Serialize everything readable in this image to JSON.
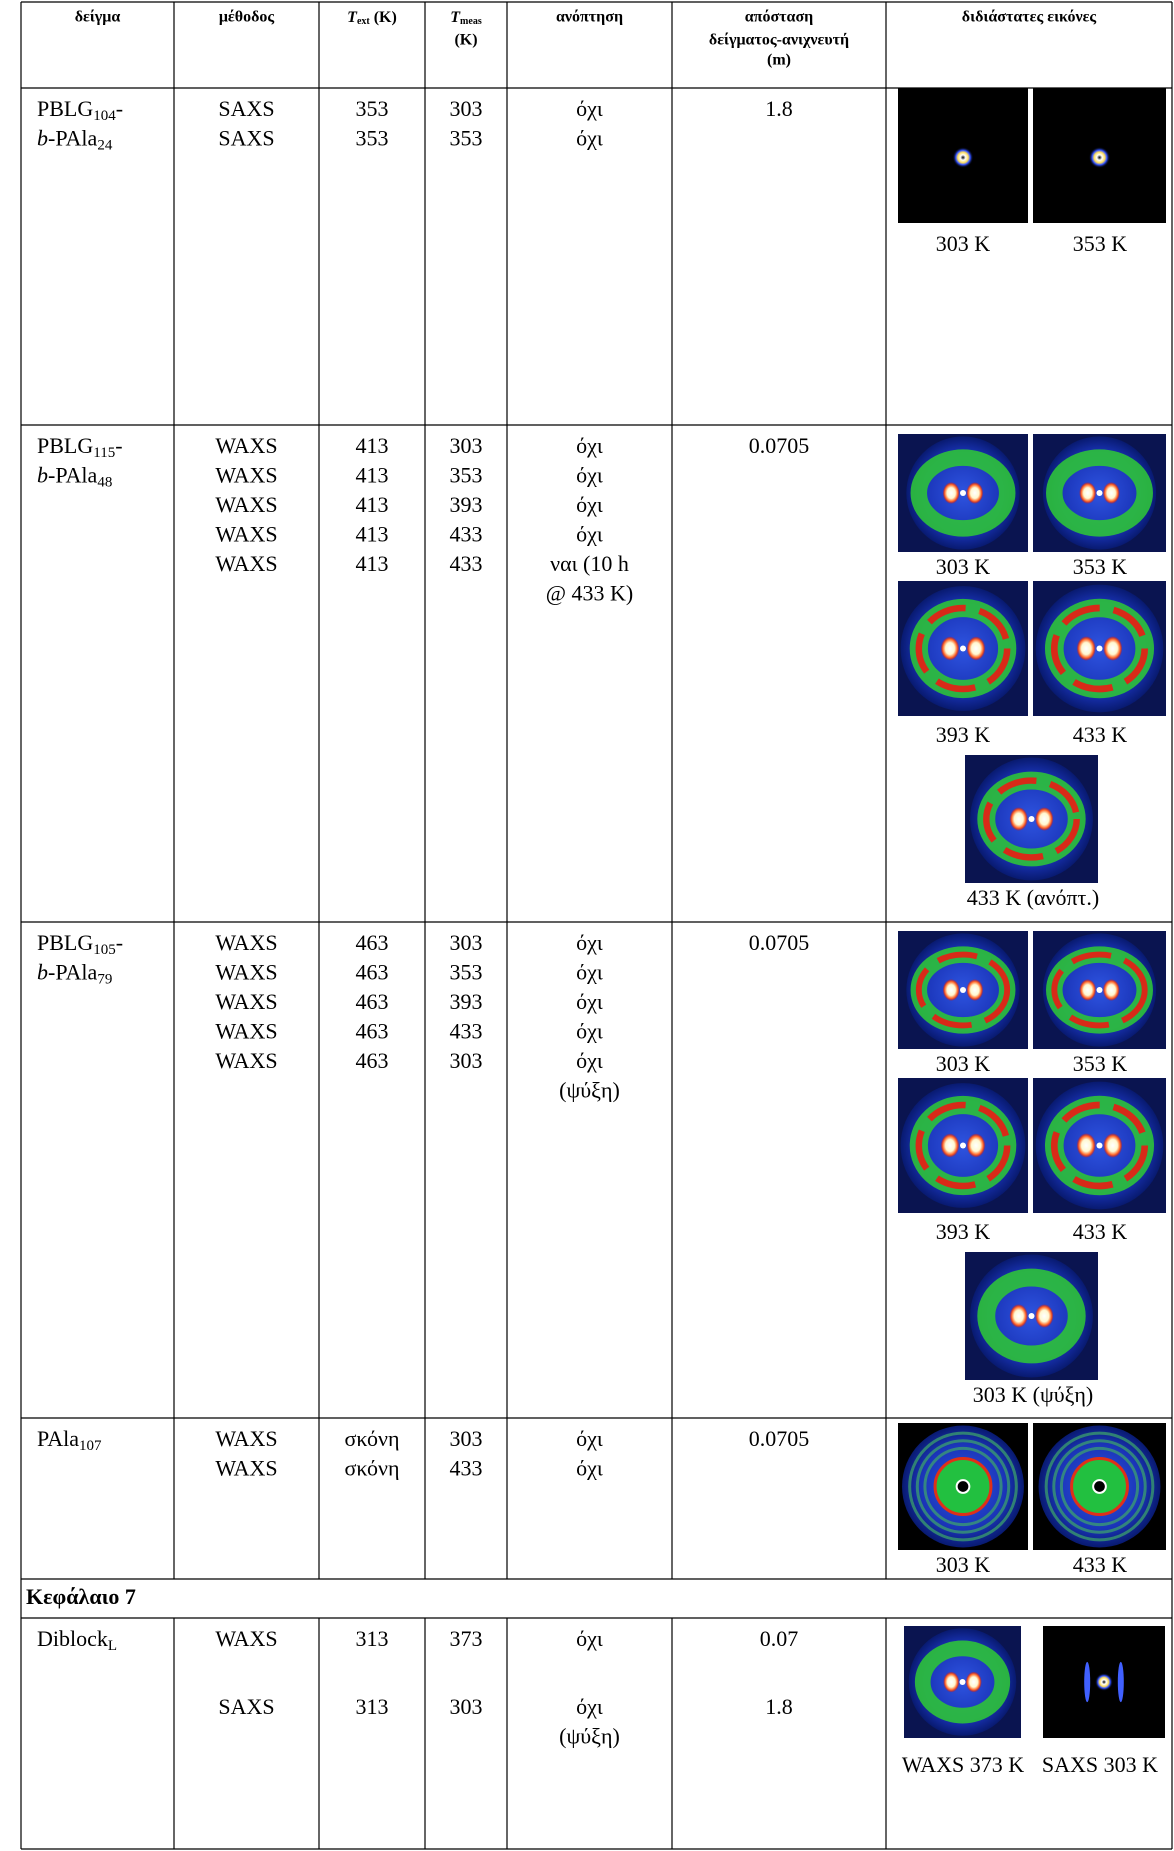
{
  "table": {
    "header": {
      "sample": "δείγμα",
      "method": "μέθοδος",
      "t_ext": {
        "symbol": "T",
        "sub": "ext",
        "unit": "(K)"
      },
      "t_meas": {
        "symbol": "T",
        "sub": "meas",
        "unit": "(K)"
      },
      "annealing": "ανόπτηση",
      "distance": [
        "απόσταση",
        "δείγματος-ανιχνευτή",
        "(m)"
      ],
      "images": "διδιάστατες εικόνες"
    },
    "rows": [
      {
        "sample": [
          [
            {
              "text": "PBLG"
            },
            {
              "sub": "104"
            },
            {
              "text": "-"
            }
          ],
          [
            {
              "italic": "b"
            },
            {
              "text": "-PAla"
            },
            {
              "sub": "24"
            }
          ]
        ],
        "entries": [
          {
            "method": "SAXS",
            "t_ext": 353,
            "t_meas": 303,
            "annealing": [
              "όχι"
            ],
            "distance": 1.8
          },
          {
            "method": "SAXS",
            "t_ext": 353,
            "t_meas": 353,
            "annealing": [
              "όχι"
            ]
          }
        ],
        "images": [
          "303 K",
          "353 K"
        ]
      },
      {
        "sample": [
          [
            {
              "text": "PBLG"
            },
            {
              "sub": "115"
            },
            {
              "text": "-"
            }
          ],
          [
            {
              "italic": "b"
            },
            {
              "text": "-PAla"
            },
            {
              "sub": "48"
            }
          ]
        ],
        "entries": [
          {
            "method": "WAXS",
            "t_ext": 413,
            "t_meas": 303,
            "annealing": [
              "όχι"
            ],
            "distance": 0.0705
          },
          {
            "method": "WAXS",
            "t_ext": 413,
            "t_meas": 353,
            "annealing": [
              "όχι"
            ]
          },
          {
            "method": "WAXS",
            "t_ext": 413,
            "t_meas": 393,
            "annealing": [
              "όχι"
            ]
          },
          {
            "method": "WAXS",
            "t_ext": 413,
            "t_meas": 433,
            "annealing": [
              "όχι"
            ]
          },
          {
            "method": "WAXS",
            "t_ext": 413,
            "t_meas": 433,
            "annealing": [
              "ναι (10 h",
              "@ 433 K)"
            ]
          }
        ],
        "images": [
          "303 K",
          "353 K",
          "393 K",
          "433 K",
          "433 K (ανόπτ.)"
        ]
      },
      {
        "sample": [
          [
            {
              "text": "PBLG"
            },
            {
              "sub": "105"
            },
            {
              "text": "-"
            }
          ],
          [
            {
              "italic": "b"
            },
            {
              "text": "-PAla"
            },
            {
              "sub": "79"
            }
          ]
        ],
        "entries": [
          {
            "method": "WAXS",
            "t_ext": 463,
            "t_meas": 303,
            "annealing": [
              "όχι"
            ],
            "distance": 0.0705
          },
          {
            "method": "WAXS",
            "t_ext": 463,
            "t_meas": 353,
            "annealing": [
              "όχι"
            ]
          },
          {
            "method": "WAXS",
            "t_ext": 463,
            "t_meas": 393,
            "annealing": [
              "όχι"
            ]
          },
          {
            "method": "WAXS",
            "t_ext": 463,
            "t_meas": 433,
            "annealing": [
              "όχι"
            ]
          },
          {
            "method": "WAXS",
            "t_ext": 463,
            "t_meas": 303,
            "annealing": [
              "όχι",
              "(ψύξη)"
            ]
          }
        ],
        "images": [
          "303 K",
          "353 K",
          "393 K",
          "433 K",
          "303 K (ψύξη)"
        ]
      },
      {
        "sample": [
          [
            {
              "text": "PAla"
            },
            {
              "sub": "107"
            }
          ]
        ],
        "entries": [
          {
            "method": "WAXS",
            "t_ext": "σκόνη",
            "t_meas": 303,
            "annealing": [
              "όχι"
            ],
            "distance": 0.0705
          },
          {
            "method": "WAXS",
            "t_ext": "σκόνη",
            "t_meas": 433,
            "annealing": [
              "όχι"
            ]
          }
        ],
        "images": [
          "303 K",
          "433 K"
        ]
      },
      {
        "section": "Κεφάλαιο 7"
      },
      {
        "sample": [
          [
            {
              "text": "Diblock"
            },
            {
              "sub": "L"
            }
          ]
        ],
        "entries": [
          {
            "method": "WAXS",
            "t_ext": 313,
            "t_meas": 373,
            "annealing": [
              "όχι"
            ],
            "distance": 0.07
          },
          {
            "method": "SAXS",
            "t_ext": 313,
            "t_meas": 303,
            "annealing": [
              "όχι",
              "(ψύξη)"
            ],
            "distance": 1.8
          }
        ],
        "images": [
          "WAXS 373 K",
          "SAXS 303 K"
        ]
      }
    ]
  }
}
